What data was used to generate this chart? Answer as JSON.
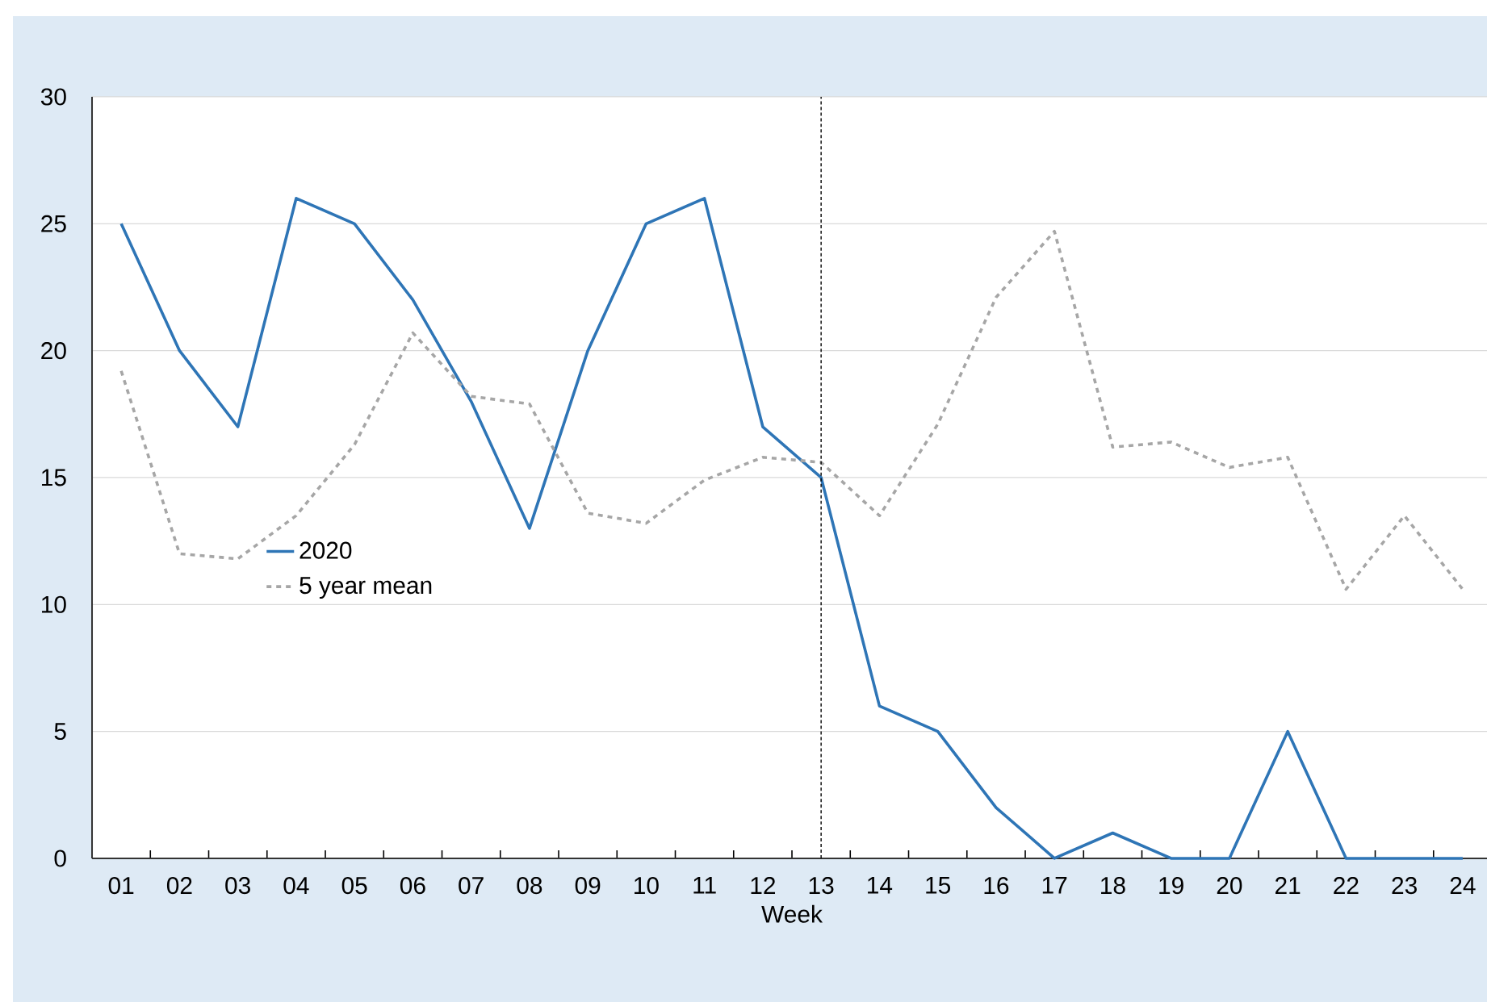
{
  "chart_data": {
    "type": "line",
    "xlabel": "Week",
    "categories": [
      "01",
      "02",
      "03",
      "04",
      "05",
      "06",
      "07",
      "08",
      "09",
      "10",
      "11",
      "12",
      "13",
      "14",
      "15",
      "16",
      "17",
      "18",
      "19",
      "20",
      "21",
      "22",
      "23",
      "24"
    ],
    "series": [
      {
        "name": "2020",
        "color": "#2e75b6",
        "line_style": "solid",
        "values": [
          25,
          20,
          17,
          26,
          25,
          22,
          18,
          13,
          20,
          25,
          26,
          17,
          15,
          6,
          5,
          2,
          0,
          1,
          0,
          0,
          5,
          0,
          0,
          0
        ]
      },
      {
        "name": "5 year mean",
        "color": "#a6a6a6",
        "line_style": "dashed",
        "values": [
          19.2,
          12.0,
          11.8,
          13.5,
          16.3,
          20.7,
          18.2,
          17.9,
          13.6,
          13.2,
          14.9,
          15.8,
          15.6,
          13.5,
          17.1,
          22.1,
          24.7,
          16.2,
          16.4,
          15.4,
          15.8,
          10.6,
          13.5,
          10.6
        ]
      }
    ],
    "ylim": [
      0,
      30
    ],
    "yticks": [
      0,
      5,
      10,
      15,
      20,
      25,
      30
    ],
    "grid": "y",
    "legend": "left",
    "marker": "none",
    "ref_lines": [
      {
        "axis": "x",
        "value": "13",
        "color": "#000000",
        "line_style": "dashed"
      }
    ]
  }
}
